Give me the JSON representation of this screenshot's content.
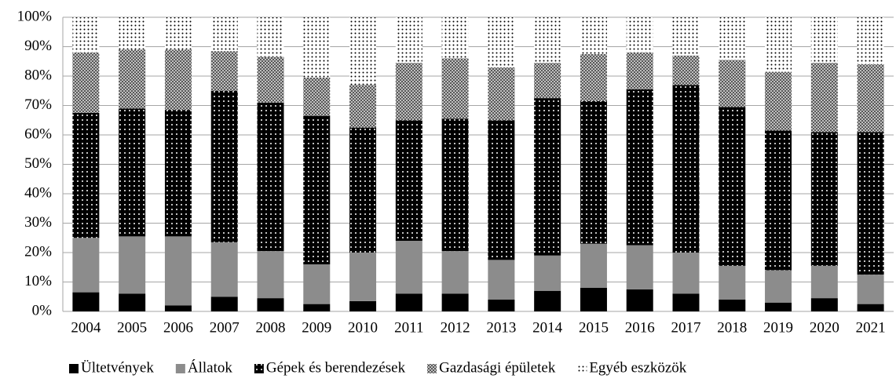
{
  "chart_data": {
    "type": "stacked_bar",
    "categories": [
      "2004",
      "2005",
      "2006",
      "2007",
      "2008",
      "2009",
      "2010",
      "2011",
      "2012",
      "2013",
      "2014",
      "2015",
      "2016",
      "2017",
      "2018",
      "2019",
      "2020",
      "2021"
    ],
    "series": [
      {
        "name": "Ültetvények",
        "color": "#000000",
        "pattern": "solid",
        "values": [
          6.5,
          6,
          2,
          5,
          4.5,
          2.5,
          3.5,
          6,
          6,
          4,
          7,
          8,
          7.5,
          6,
          4,
          3,
          4.5,
          2.5
        ]
      },
      {
        "name": "Állatok",
        "color": "#8c8c8c",
        "pattern": "solid",
        "values": [
          18.5,
          19.5,
          23.5,
          18.5,
          16,
          13.5,
          16.5,
          18,
          14.5,
          13.5,
          12,
          15,
          15,
          14,
          11.5,
          11,
          11,
          10
        ]
      },
      {
        "name": "Gépek és berendezések",
        "color": "#000000",
        "pattern": "dots-white",
        "values": [
          42.5,
          43.5,
          43,
          51.5,
          50.5,
          50.5,
          42.5,
          41,
          45,
          47.5,
          53.5,
          48.5,
          53,
          57,
          54,
          47.5,
          45.5,
          48.5
        ]
      },
      {
        "name": "Gazdasági épületek",
        "color": "#6e6e6e",
        "pattern": "cross",
        "values": [
          20.5,
          20,
          20.5,
          13.5,
          15.5,
          13,
          14.5,
          19.5,
          20.5,
          18,
          12,
          16,
          12.5,
          10,
          16,
          20,
          23.5,
          23
        ]
      },
      {
        "name": "Egyéb eszközök",
        "color": "#000000",
        "pattern": "dots-black",
        "values": [
          12,
          11,
          11,
          11.5,
          13.5,
          20.5,
          23,
          15.5,
          14,
          17,
          15.5,
          12.5,
          12,
          13,
          14.5,
          18.5,
          15.5,
          16
        ]
      }
    ],
    "ylim": [
      0,
      100
    ],
    "yticks": [
      {
        "value": 0,
        "label": "0%"
      },
      {
        "value": 10,
        "label": "10%"
      },
      {
        "value": 20,
        "label": "20%"
      },
      {
        "value": 30,
        "label": "30%"
      },
      {
        "value": 40,
        "label": "40%"
      },
      {
        "value": 50,
        "label": "50%"
      },
      {
        "value": 60,
        "label": "60%"
      },
      {
        "value": 70,
        "label": "70%"
      },
      {
        "value": 80,
        "label": "80%"
      },
      {
        "value": 90,
        "label": "90%"
      },
      {
        "value": 100,
        "label": "100%"
      }
    ],
    "grid": true,
    "legend": "bottom"
  }
}
